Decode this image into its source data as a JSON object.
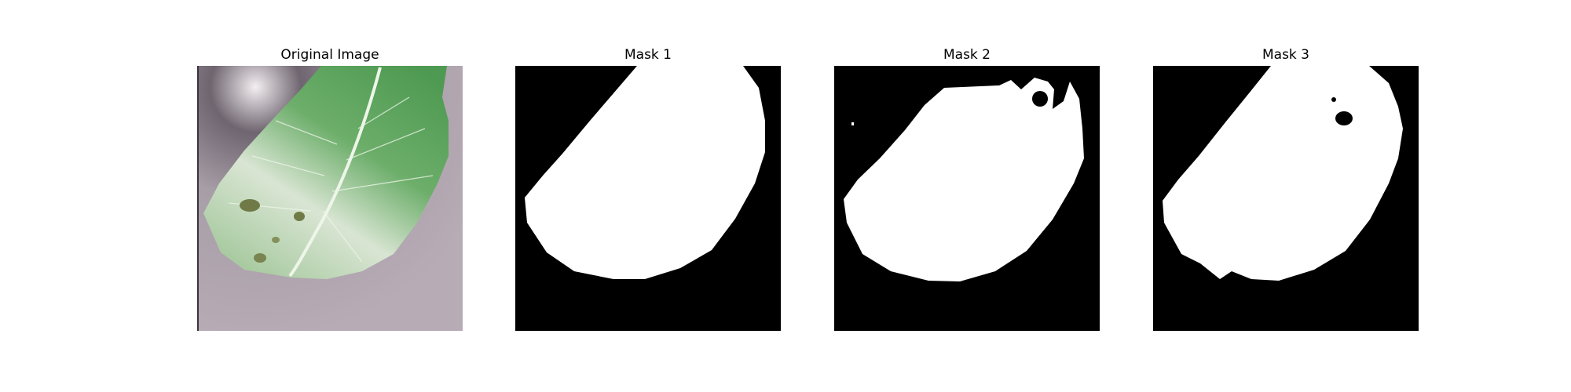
{
  "figure": {
    "panels": [
      {
        "title": "Original Image",
        "kind": "photo",
        "subject": "leaf-photo"
      },
      {
        "title": "Mask 1",
        "kind": "mask"
      },
      {
        "title": "Mask 2",
        "kind": "mask"
      },
      {
        "title": "Mask 3",
        "kind": "mask"
      }
    ]
  },
  "colors": {
    "mask_background": "#000000",
    "mask_foreground": "#ffffff",
    "photo_background": "#b7abb5",
    "photo_vignette": "#6f6570",
    "leaf_green": "#6cae6a",
    "leaf_pale": "#d9e5d3",
    "leaf_vein": "#eef5e9",
    "lesion": "#6f7a46"
  }
}
